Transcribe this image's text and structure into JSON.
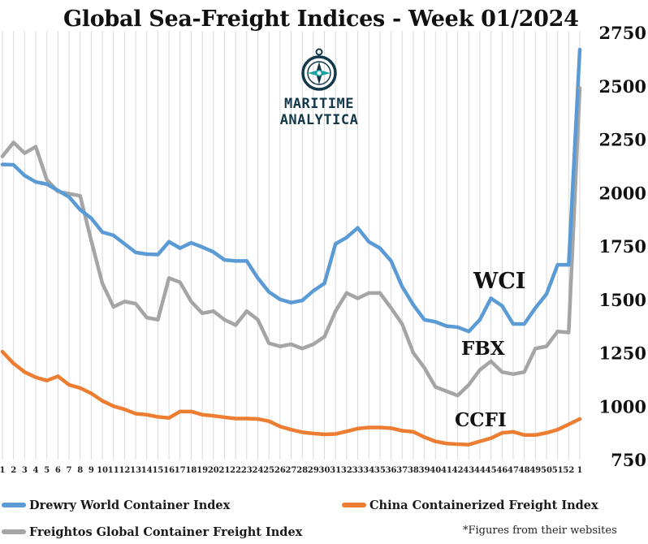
{
  "title": "Global Sea-Freight Indices -  Week 01/2024",
  "logo": {
    "line1": "MARITIME",
    "line2": "ANALYTICA",
    "icon": "compass-icon"
  },
  "footnote": "*Figures from their websites",
  "legend": [
    {
      "label": "Drewry World Container Index",
      "color": "#5b9bd5"
    },
    {
      "label": "China Containerized Freight Index",
      "color": "#ed7d31"
    },
    {
      "label": "Freightos Global Container Freight Index",
      "color": "#a5a5a5"
    }
  ],
  "chart_data": {
    "type": "line",
    "title": "Global Sea-Freight Indices -  Week 01/2024",
    "xlabel": "",
    "ylabel": "",
    "ylim": [
      750,
      2750
    ],
    "yticks": [
      750,
      1000,
      1250,
      1500,
      1750,
      2000,
      2250,
      2500,
      2750
    ],
    "y_axis_position": "right",
    "grid": "vertical",
    "categories": [
      "1",
      "2",
      "3",
      "4",
      "5",
      "6",
      "7",
      "8",
      "9",
      "10",
      "11",
      "12",
      "13",
      "14",
      "15",
      "16",
      "17",
      "18",
      "19",
      "20",
      "21",
      "22",
      "23",
      "24",
      "25",
      "26",
      "27",
      "28",
      "29",
      "30",
      "31",
      "32",
      "33",
      "34",
      "35",
      "36",
      "37",
      "38",
      "39",
      "40",
      "41",
      "42",
      "43",
      "44",
      "45",
      "46",
      "47",
      "48",
      "49",
      "50",
      "51",
      "52",
      "1"
    ],
    "series": [
      {
        "name": "Drewry World Container Index",
        "short": "WCI",
        "color": "#5b9bd5",
        "values": [
          2132,
          2130,
          2080,
          2050,
          2040,
          2010,
          1980,
          1920,
          1880,
          1815,
          1800,
          1760,
          1720,
          1712,
          1710,
          1770,
          1740,
          1765,
          1745,
          1722,
          1685,
          1680,
          1680,
          1600,
          1535,
          1500,
          1485,
          1495,
          1540,
          1575,
          1760,
          1790,
          1835,
          1770,
          1740,
          1680,
          1560,
          1475,
          1405,
          1395,
          1375,
          1370,
          1350,
          1405,
          1505,
          1470,
          1385,
          1385,
          1460,
          1525,
          1662,
          1662,
          2670
        ]
      },
      {
        "name": "China Containerized Freight Index",
        "short": "CCFI",
        "color": "#ed7d31",
        "values": [
          1255,
          1200,
          1160,
          1135,
          1120,
          1140,
          1100,
          1085,
          1060,
          1025,
          1000,
          985,
          965,
          960,
          950,
          945,
          975,
          975,
          960,
          955,
          948,
          942,
          942,
          940,
          930,
          905,
          890,
          878,
          872,
          868,
          870,
          882,
          895,
          900,
          900,
          897,
          885,
          880,
          855,
          835,
          825,
          822,
          820,
          835,
          850,
          875,
          880,
          865,
          865,
          875,
          890,
          915,
          940
        ]
      },
      {
        "name": "Freightos Global Container Freight Index",
        "short": "FBX",
        "color": "#a5a5a5",
        "values": [
          2170,
          2235,
          2185,
          2215,
          2060,
          2005,
          1995,
          1985,
          1775,
          1575,
          1465,
          1490,
          1480,
          1415,
          1405,
          1600,
          1580,
          1490,
          1435,
          1445,
          1405,
          1380,
          1445,
          1405,
          1295,
          1280,
          1290,
          1270,
          1290,
          1325,
          1445,
          1530,
          1505,
          1530,
          1530,
          1460,
          1385,
          1250,
          1180,
          1090,
          1070,
          1050,
          1100,
          1170,
          1210,
          1160,
          1150,
          1160,
          1270,
          1280,
          1350,
          1345,
          2490
        ]
      }
    ],
    "annotations": [
      {
        "text": "WCI",
        "series": "Drewry World Container Index"
      },
      {
        "text": "FBX",
        "series": "Freightos Global Container Freight Index"
      },
      {
        "text": "CCFI",
        "series": "China Containerized Freight Index"
      }
    ]
  }
}
